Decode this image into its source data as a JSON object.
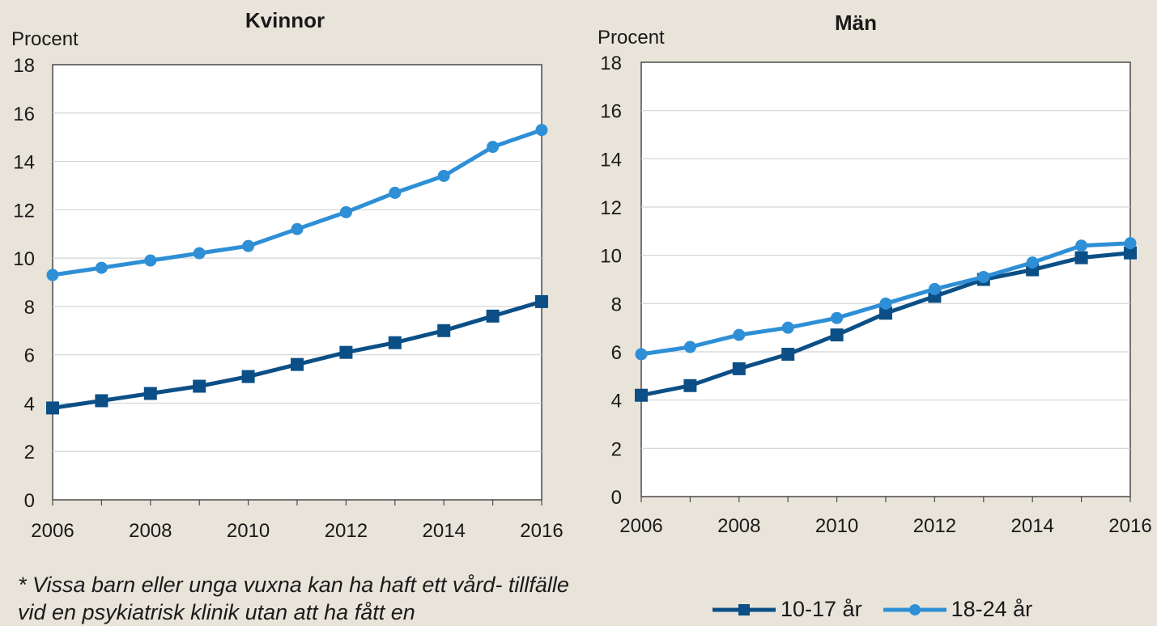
{
  "chart_data": [
    {
      "type": "line",
      "title": "Kvinnor",
      "ylabel": "Procent",
      "xlabel": "",
      "ylim": [
        0,
        18
      ],
      "yticks": [
        "0",
        "2",
        "4",
        "6",
        "8",
        "10",
        "12",
        "14",
        "16",
        "18"
      ],
      "xticks": [
        "2006",
        "2008",
        "2010",
        "2012",
        "2014",
        "2016"
      ],
      "x": [
        2006,
        2007,
        2008,
        2009,
        2010,
        2011,
        2012,
        2013,
        2014,
        2015,
        2016
      ],
      "grid": true,
      "series": [
        {
          "name": "10-17 år",
          "color": "#0b4f86",
          "marker": "square",
          "values": [
            3.8,
            4.1,
            4.4,
            4.7,
            5.1,
            5.6,
            6.1,
            6.5,
            7.0,
            7.6,
            8.2
          ]
        },
        {
          "name": "18-24 år",
          "color": "#2e8fd6",
          "marker": "circle",
          "values": [
            9.3,
            9.6,
            9.9,
            10.2,
            10.5,
            11.2,
            11.9,
            12.7,
            13.4,
            14.6,
            15.3
          ]
        }
      ]
    },
    {
      "type": "line",
      "title": "Män",
      "ylabel": "Procent",
      "xlabel": "",
      "ylim": [
        0,
        18
      ],
      "yticks": [
        "0",
        "2",
        "4",
        "6",
        "8",
        "10",
        "12",
        "14",
        "16",
        "18"
      ],
      "xticks": [
        "2006",
        "2008",
        "2010",
        "2012",
        "2014",
        "2016"
      ],
      "x": [
        2006,
        2007,
        2008,
        2009,
        2010,
        2011,
        2012,
        2013,
        2014,
        2015,
        2016
      ],
      "grid": true,
      "series": [
        {
          "name": "10-17 år",
          "color": "#0b4f86",
          "marker": "square",
          "values": [
            4.2,
            4.6,
            5.3,
            5.9,
            6.7,
            7.6,
            8.3,
            9.0,
            9.4,
            9.9,
            10.1
          ]
        },
        {
          "name": "18-24 år",
          "color": "#2e8fd6",
          "marker": "circle",
          "values": [
            5.9,
            6.2,
            6.7,
            7.0,
            7.4,
            8.0,
            8.6,
            9.1,
            9.7,
            10.4,
            10.5
          ]
        }
      ]
    }
  ],
  "legend": {
    "items": [
      {
        "label": "10-17 år",
        "color": "#0b4f86",
        "marker": "square"
      },
      {
        "label": "18-24 år",
        "color": "#2e8fd6",
        "marker": "circle"
      }
    ]
  },
  "footnote": {
    "text": "* Vissa barn eller unga vuxna kan ha haft ett vård- tillfälle vid en psykiatrisk klinik utan att ha fått en"
  }
}
